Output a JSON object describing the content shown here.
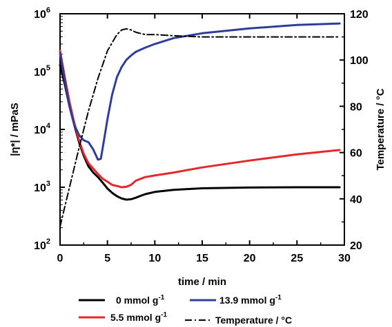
{
  "chart_data": {
    "type": "line",
    "xlabel": "time / min",
    "ylabel_left": "|η*| / mPaS",
    "ylabel_right": "Temperature / °C",
    "x_ticks": [
      "0",
      "5",
      "10",
      "15",
      "20",
      "25",
      "30"
    ],
    "y_left_ticks": [
      {
        "base": "10",
        "exp": "2"
      },
      {
        "base": "10",
        "exp": "3"
      },
      {
        "base": "10",
        "exp": "4"
      },
      {
        "base": "10",
        "exp": "5"
      },
      {
        "base": "10",
        "exp": "6"
      }
    ],
    "y_right_ticks": [
      "20",
      "40",
      "60",
      "80",
      "100",
      "120"
    ],
    "xlim": [
      0,
      30
    ],
    "ylim_left": [
      100,
      1000000
    ],
    "y_left_scale": "log",
    "ylim_right": [
      20,
      120
    ],
    "grid": false,
    "legend_position": "bottom",
    "series": [
      {
        "name": "0 mmol g",
        "name_sup": "-1",
        "axis": "left",
        "color": "#000000",
        "style": "solid",
        "x": [
          0,
          0.5,
          1,
          1.5,
          2,
          2.5,
          3,
          3.5,
          4,
          4.5,
          5,
          5.5,
          6,
          6.5,
          7,
          7.5,
          8,
          8.5,
          9,
          10,
          12,
          15,
          20,
          25,
          29.5
        ],
        "y": [
          130000,
          60000,
          25000,
          12000,
          6000,
          3500,
          2300,
          1800,
          1500,
          1200,
          950,
          800,
          700,
          640,
          610,
          620,
          660,
          710,
          760,
          830,
          900,
          960,
          990,
          1000,
          1000
        ]
      },
      {
        "name": "5.5 mmol g",
        "name_sup": "-1",
        "axis": "left",
        "color": "#e8262a",
        "style": "solid",
        "x": [
          0,
          0.5,
          1,
          1.5,
          2,
          2.5,
          3,
          3.5,
          4,
          4.5,
          5,
          5.5,
          6,
          6.5,
          7,
          7.5,
          8,
          9,
          10,
          12,
          15,
          20,
          25,
          29.5
        ],
        "y": [
          230000,
          80000,
          30000,
          13000,
          6500,
          3800,
          2600,
          2100,
          1700,
          1400,
          1250,
          1100,
          1050,
          1000,
          1020,
          1100,
          1300,
          1500,
          1600,
          1800,
          2200,
          2900,
          3700,
          4400
        ]
      },
      {
        "name": "13.9 mmol g",
        "name_sup": "-1",
        "axis": "left",
        "color": "#2e3d9c",
        "style": "solid",
        "x": [
          0,
          0.5,
          1,
          1.5,
          2,
          2.5,
          3,
          3.5,
          4,
          4.3,
          4.6,
          5,
          5.5,
          6,
          6.5,
          7,
          7.5,
          8,
          9,
          10,
          12,
          15,
          20,
          25,
          29.5
        ],
        "y": [
          210000,
          70000,
          25000,
          12000,
          8000,
          6500,
          6000,
          4500,
          3000,
          3100,
          6000,
          15000,
          40000,
          80000,
          120000,
          160000,
          190000,
          220000,
          260000,
          300000,
          380000,
          460000,
          560000,
          640000,
          680000
        ]
      },
      {
        "name": "Temperature / °C",
        "axis": "right",
        "color": "#000000",
        "style": "dashdot",
        "x": [
          0,
          1,
          2,
          3,
          4,
          5,
          6,
          6.5,
          7,
          7.5,
          8,
          8.5,
          9,
          10,
          12,
          15,
          20,
          25,
          29.5
        ],
        "y": [
          28,
          45,
          62,
          78,
          92,
          104,
          111,
          113,
          113.5,
          113,
          112,
          111.5,
          111,
          111,
          110.5,
          110,
          110,
          110,
          110
        ]
      }
    ]
  }
}
